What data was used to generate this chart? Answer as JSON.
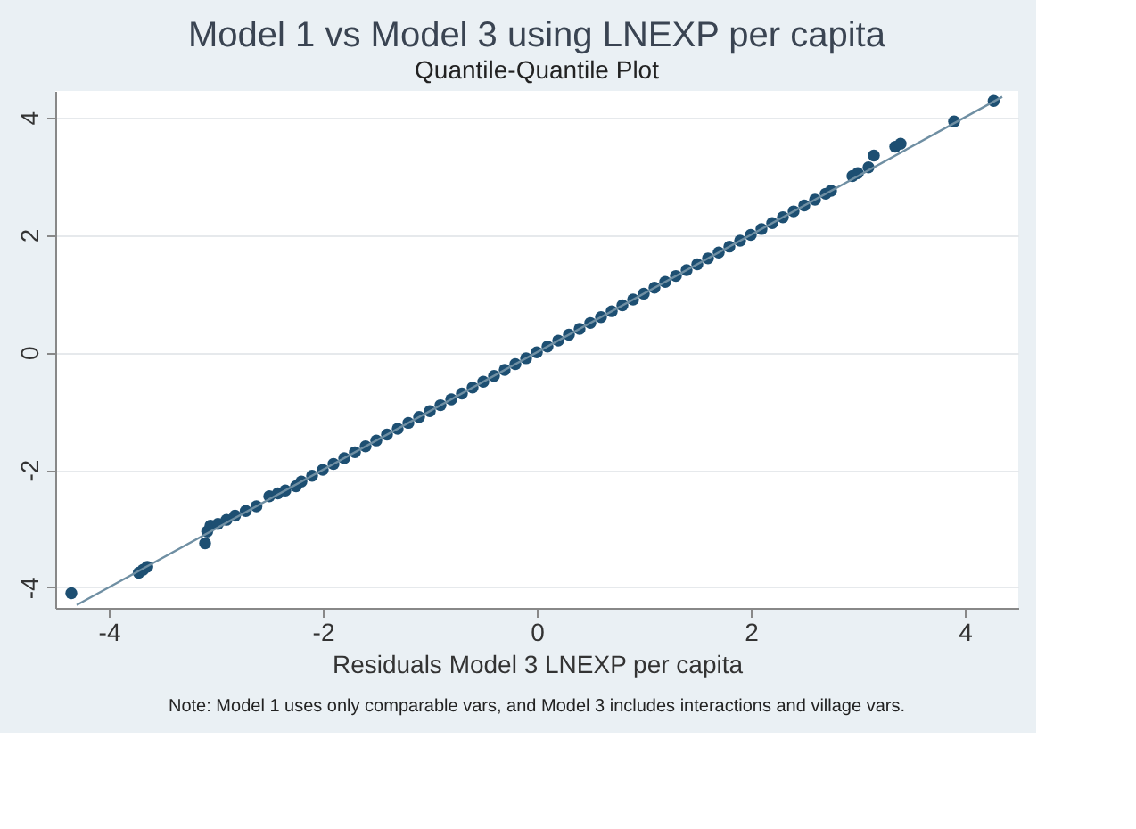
{
  "chart_data": {
    "type": "scatter",
    "title": "Model 1 vs Model 3 using LNEXP per capita",
    "subtitle": "Quantile-Quantile Plot",
    "xlabel": "Residuals Model 3 LNEXP per capita",
    "annotations": [
      "Note: Model 1 uses only comparable vars, and Model 3 includes interactions and village vars."
    ],
    "series": [
      {
        "color": "#1d4f72",
        "marker": "circle",
        "x": [
          -4.35,
          -3.72,
          -3.68,
          -3.64,
          -3.1,
          -3.08,
          -3.05,
          -2.98,
          -2.9,
          -2.82,
          -2.72,
          -2.62,
          -2.5,
          -2.42,
          -2.35,
          -2.25,
          -2.2,
          -2.1,
          -2.0,
          -1.9,
          -1.8,
          -1.7,
          -1.6,
          -1.5,
          -1.4,
          -1.3,
          -1.2,
          -1.1,
          -1.0,
          -0.9,
          -0.8,
          -0.7,
          -0.6,
          -0.5,
          -0.4,
          -0.3,
          -0.2,
          -0.1,
          0.0,
          0.1,
          0.2,
          0.3,
          0.4,
          0.5,
          0.6,
          0.7,
          0.8,
          0.9,
          1.0,
          1.1,
          1.2,
          1.3,
          1.4,
          1.5,
          1.6,
          1.7,
          1.8,
          1.9,
          2.0,
          2.1,
          2.2,
          2.3,
          2.4,
          2.5,
          2.6,
          2.7,
          2.75,
          2.95,
          3.0,
          3.1,
          3.15,
          3.35,
          3.4,
          3.9,
          4.27
        ],
        "values": [
          -4.1,
          -3.75,
          -3.7,
          -3.65,
          -3.25,
          -3.05,
          -2.95,
          -2.92,
          -2.85,
          -2.78,
          -2.7,
          -2.62,
          -2.45,
          -2.4,
          -2.35,
          -2.28,
          -2.2,
          -2.1,
          -2.0,
          -1.9,
          -1.8,
          -1.7,
          -1.6,
          -1.5,
          -1.4,
          -1.3,
          -1.2,
          -1.1,
          -1.0,
          -0.9,
          -0.8,
          -0.7,
          -0.6,
          -0.5,
          -0.4,
          -0.3,
          -0.2,
          -0.1,
          0.0,
          0.1,
          0.2,
          0.3,
          0.4,
          0.5,
          0.6,
          0.7,
          0.8,
          0.9,
          1.0,
          1.1,
          1.2,
          1.3,
          1.4,
          1.5,
          1.6,
          1.7,
          1.8,
          1.9,
          2.0,
          2.1,
          2.2,
          2.3,
          2.4,
          2.5,
          2.6,
          2.7,
          2.75,
          3.0,
          3.05,
          3.15,
          3.35,
          3.5,
          3.55,
          3.93,
          4.28
        ]
      },
      {
        "type": "line",
        "color": "#6f8fa3",
        "x": [
          -4.3,
          4.35
        ],
        "values": [
          -4.3,
          4.35
        ]
      }
    ],
    "xlim": [
      -4.5,
      4.5
    ],
    "ylim": [
      -4.35,
      4.45
    ],
    "xticks": [
      -4,
      -2,
      0,
      2,
      4
    ],
    "yticks": [
      -4,
      -2,
      0,
      2,
      4
    ],
    "grid": "y"
  }
}
